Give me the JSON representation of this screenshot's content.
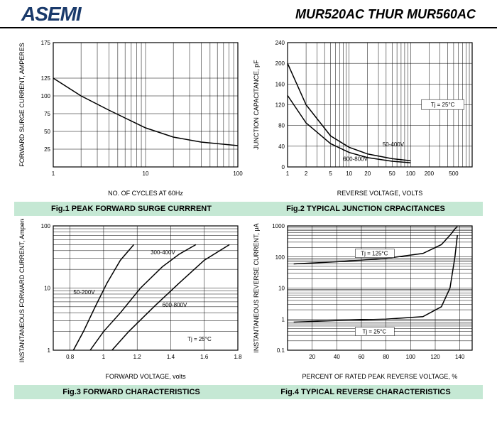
{
  "header": {
    "logo": "ASEMI",
    "part": "MUR520AC THUR MUR560AC"
  },
  "fig1": {
    "caption": "Fig.1 PEAK FORWARD SURGE CURRRENT",
    "type": "line",
    "xlabel": "NO. OF CYCLES AT 60Hz",
    "ylabel": "FORWARD SURGE CURRENT, AMPERES",
    "xscale": "log",
    "yscale": "linear",
    "xlim": [
      1,
      100
    ],
    "ylim": [
      0,
      175
    ],
    "xticks": [
      1,
      10,
      100
    ],
    "yticks": [
      25,
      50,
      75,
      100,
      125,
      175
    ],
    "curve_x": [
      1,
      2,
      4,
      10,
      20,
      40,
      100
    ],
    "curve_y": [
      125,
      100,
      80,
      55,
      42,
      35,
      30
    ],
    "bg": "#ffffff",
    "line_color": "#000000",
    "line_width": 1.5
  },
  "fig2": {
    "caption": "Fig.2 TYPICAL JUNCTION CRPACITANCES",
    "type": "line",
    "xlabel": "REVERSE VOLTAGE, VOLTS",
    "ylabel": "JUNCTION CAPACITANCE, pF",
    "xscale": "log",
    "yscale": "linear",
    "xlim": [
      1,
      1000
    ],
    "ylim": [
      0,
      240
    ],
    "xticks": [
      1,
      2,
      5,
      10,
      20,
      50,
      100,
      200,
      500
    ],
    "yticks": [
      0,
      40,
      80,
      120,
      160,
      200,
      240
    ],
    "anno_temp": "Tj = 25°C",
    "curve_50_400_label": "50-400V",
    "curve_600_800_label": "600-800V",
    "c1_x": [
      1,
      2,
      5,
      10,
      20,
      50,
      100
    ],
    "c1_y": [
      200,
      120,
      60,
      38,
      25,
      16,
      12
    ],
    "c2_x": [
      1,
      2,
      5,
      10,
      20,
      50,
      100
    ],
    "c2_y": [
      138,
      85,
      45,
      28,
      18,
      11,
      8
    ],
    "bg": "#ffffff",
    "line_color": "#000000",
    "line_width": 1.5
  },
  "fig3": {
    "caption": "Fig.3 FORWARD CHARACTERISTICS",
    "type": "line",
    "xlabel": "FORWARD VOLTAGE, volts",
    "ylabel": "INSTANTANEOUS FORWARD CURRENT, Amperes",
    "xscale": "linear",
    "yscale": "log",
    "xlim": [
      0.7,
      1.8
    ],
    "ylim": [
      1,
      100
    ],
    "xticks": [
      0.8,
      1.0,
      1.2,
      1.4,
      1.6,
      1.8
    ],
    "yticks": [
      1.0,
      10,
      100
    ],
    "anno_temp": "Tj = 25°C",
    "label_a": "50-200V",
    "label_b": "300-400V",
    "label_c": "600-800V",
    "ca_x": [
      0.82,
      0.88,
      0.95,
      1.02,
      1.1,
      1.18
    ],
    "ca_y": [
      1,
      2,
      5,
      12,
      28,
      50
    ],
    "cb_x": [
      0.92,
      1.0,
      1.1,
      1.22,
      1.35,
      1.45,
      1.55
    ],
    "cb_y": [
      1,
      2,
      4,
      10,
      22,
      35,
      50
    ],
    "cc_x": [
      1.05,
      1.15,
      1.3,
      1.45,
      1.6,
      1.75
    ],
    "cc_y": [
      1,
      2,
      5,
      12,
      28,
      50
    ],
    "bg": "#ffffff",
    "line_color": "#000000",
    "line_width": 1.5
  },
  "fig4": {
    "caption": "Fig.4 TYPICAL REVERSE CHARACTERISTICS",
    "type": "line",
    "xlabel": "PERCENT OF RATED PEAK REVERSE VOLTAGE, %",
    "ylabel": "INSTANTANEOUS REVERSE CURRENT, μA",
    "xscale": "linear",
    "yscale": "log",
    "xlim": [
      0,
      150
    ],
    "ylim": [
      0.1,
      1000
    ],
    "xticks": [
      20,
      40,
      60,
      80,
      100,
      120,
      140
    ],
    "yticks": [
      0.1,
      1.0,
      10,
      100,
      1000
    ],
    "anno_a": "Tj = 125°C",
    "anno_b": "Tj = 25°C",
    "c1_x": [
      5,
      40,
      80,
      110,
      125,
      132,
      136,
      138
    ],
    "c1_y": [
      60,
      70,
      90,
      130,
      250,
      500,
      800,
      950
    ],
    "c2_x": [
      5,
      40,
      80,
      110,
      125,
      132,
      136,
      138
    ],
    "c2_y": [
      0.8,
      0.9,
      1.0,
      1.2,
      2.5,
      10,
      100,
      500
    ],
    "bg": "#ffffff",
    "line_color": "#000000",
    "line_width": 1.5
  }
}
